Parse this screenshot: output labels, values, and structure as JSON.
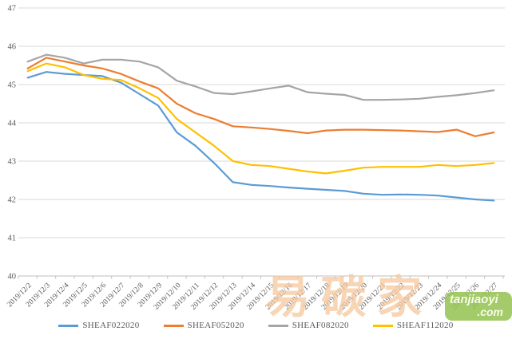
{
  "watermark": {
    "cn_text": "易碳家",
    "site_line1": "tanjiaoyi",
    "site_line2": ".com",
    "badge_color": "#97C455",
    "cn_color": "#F0A25C"
  },
  "chart_data": {
    "type": "line",
    "title": "",
    "xlabel": "",
    "ylabel": "",
    "ylim": [
      40,
      47
    ],
    "yticks": [
      40,
      41,
      42,
      43,
      44,
      45,
      46,
      47
    ],
    "grid": true,
    "legend_position": "bottom",
    "axis_color": "#D9D9D9",
    "tick_color": "#BFBFBF",
    "label_color": "#595959",
    "x": [
      "2019/12/2",
      "2019/12/3",
      "2019/12/4",
      "2019/12/5",
      "2019/12/6",
      "2019/12/7",
      "2019/12/8",
      "2019/12/9",
      "2019/12/10",
      "2019/12/11",
      "2019/12/12",
      "2019/12/13",
      "2019/12/14",
      "2019/12/15",
      "2019/12/16",
      "2019/12/17",
      "2019/12/18",
      "2019/12/19",
      "2019/12/20",
      "2019/12/21",
      "2019/12/22",
      "2019/12/23",
      "2019/12/24",
      "2019/12/25",
      "2019/12/26",
      "2019/12/27"
    ],
    "series": [
      {
        "name": "SHEAF022020",
        "color": "#5B9BD5",
        "values": [
          45.18,
          45.33,
          45.28,
          45.25,
          45.22,
          45.05,
          44.75,
          44.45,
          43.75,
          43.4,
          42.95,
          42.45,
          42.38,
          42.35,
          42.31,
          42.28,
          42.25,
          42.22,
          42.15,
          42.12,
          42.13,
          42.12,
          42.1,
          42.05,
          42.0,
          41.97
        ]
      },
      {
        "name": "SHEAF052020",
        "color": "#ED7D31",
        "values": [
          45.42,
          45.7,
          45.6,
          45.5,
          45.42,
          45.28,
          45.08,
          44.9,
          44.5,
          44.25,
          44.1,
          43.91,
          43.88,
          43.84,
          43.79,
          43.73,
          43.8,
          43.82,
          43.82,
          43.81,
          43.8,
          43.78,
          43.76,
          43.82,
          43.65,
          43.75
        ]
      },
      {
        "name": "SHEAF082020",
        "color": "#A5A5A5",
        "values": [
          45.6,
          45.78,
          45.7,
          45.55,
          45.65,
          45.65,
          45.6,
          45.45,
          45.1,
          44.95,
          44.78,
          44.75,
          44.82,
          44.9,
          44.97,
          44.8,
          44.76,
          44.73,
          44.6,
          44.6,
          44.61,
          44.63,
          44.68,
          44.72,
          44.78,
          44.85
        ]
      },
      {
        "name": "SHEAF112020",
        "color": "#FFC000",
        "values": [
          45.35,
          45.55,
          45.45,
          45.25,
          45.15,
          45.12,
          44.9,
          44.65,
          44.1,
          43.75,
          43.4,
          43.0,
          42.9,
          42.87,
          42.8,
          42.73,
          42.68,
          42.75,
          42.83,
          42.85,
          42.85,
          42.85,
          42.9,
          42.87,
          42.9,
          42.95
        ]
      }
    ]
  }
}
